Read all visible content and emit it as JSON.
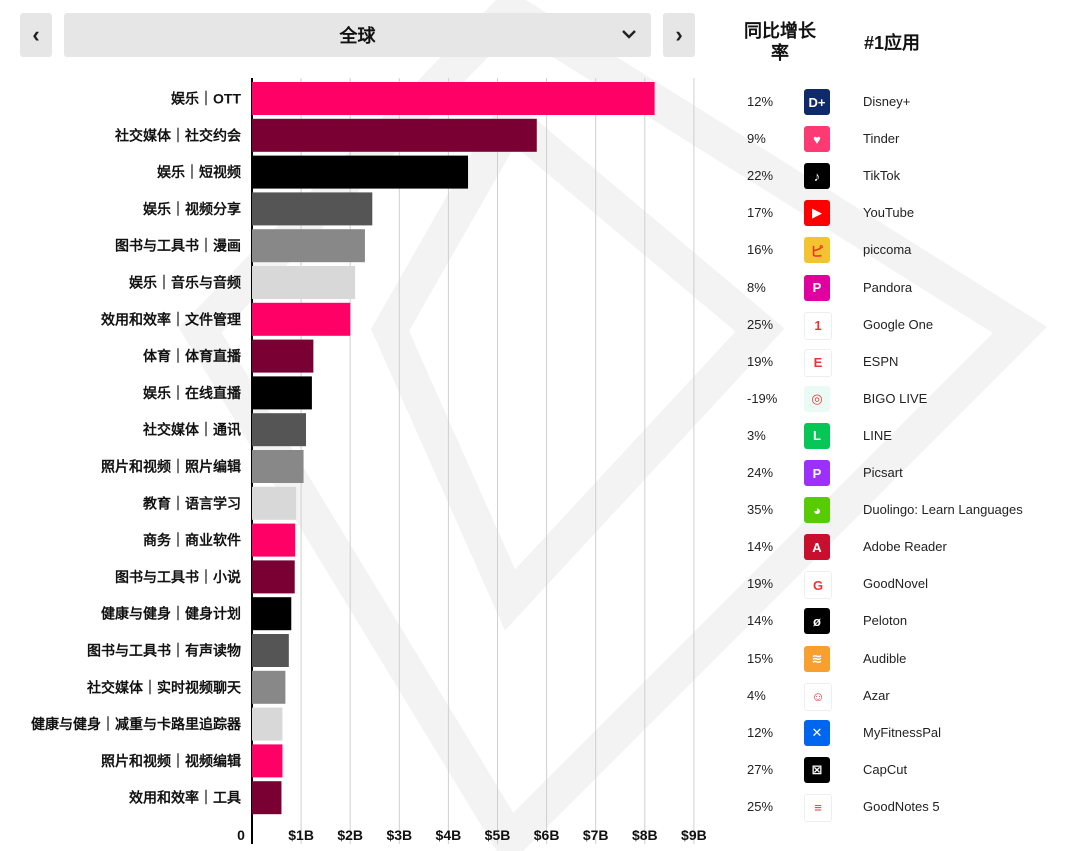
{
  "region": {
    "selected": "全球"
  },
  "columns": {
    "yoy": "同比增长\n率",
    "top_app": "#1应用"
  },
  "chart_data": {
    "type": "bar",
    "orientation": "horizontal",
    "x_tick_labels": [
      "0",
      "$1B",
      "$2B",
      "$3B",
      "$4B",
      "$5B",
      "$6B",
      "$7B",
      "$8B",
      "$9B"
    ],
    "xlim": [
      0,
      9
    ],
    "grid": true,
    "categories": [
      "娱乐｜OTT",
      "社交媒体｜社交约会",
      "娱乐｜短视频",
      "娱乐｜视频分享",
      "图书与工具书｜漫画",
      "娱乐｜音乐与音频",
      "效用和效率｜文件管理",
      "体育｜体育直播",
      "娱乐｜在线直播",
      "社交媒体｜通讯",
      "照片和视频｜照片编辑",
      "教育｜语言学习",
      "商务｜商业软件",
      "图书与工具书｜小说",
      "健康与健身｜健身计划",
      "图书与工具书｜有声读物",
      "社交媒体｜实时视频聊天",
      "健康与健身｜减重与卡路里追踪器",
      "照片和视频｜视频编辑",
      "效用和效率｜工具"
    ],
    "values": [
      8.2,
      5.8,
      4.4,
      2.45,
      2.3,
      2.1,
      2.0,
      1.25,
      1.22,
      1.1,
      1.05,
      0.9,
      0.88,
      0.87,
      0.8,
      0.75,
      0.68,
      0.62,
      0.62,
      0.6
    ],
    "bar_colors": [
      "#ff0066",
      "#7a0033",
      "#000000",
      "#555555",
      "#888888",
      "#d8d8d8"
    ]
  },
  "top_apps": [
    {
      "yoy": "12%",
      "app": "Disney+",
      "icon": "disney-plus-icon",
      "color": "#0f2a6b",
      "glyph": "D+"
    },
    {
      "yoy": "9%",
      "app": "Tinder",
      "icon": "tinder-icon",
      "color": "#fd3a73",
      "glyph": "♥"
    },
    {
      "yoy": "22%",
      "app": "TikTok",
      "icon": "tiktok-icon",
      "color": "#000000",
      "glyph": "♪"
    },
    {
      "yoy": "17%",
      "app": "YouTube",
      "icon": "youtube-icon",
      "color": "#ff0000",
      "glyph": "▶"
    },
    {
      "yoy": "16%",
      "app": "piccoma",
      "icon": "piccoma-icon",
      "color": "#f4c430",
      "glyph": "ピ"
    },
    {
      "yoy": "8%",
      "app": "Pandora",
      "icon": "pandora-icon",
      "color": "#e000a0",
      "glyph": "P"
    },
    {
      "yoy": "25%",
      "app": "Google One",
      "icon": "google-one-icon",
      "color": "#ffffff",
      "glyph": "1"
    },
    {
      "yoy": "19%",
      "app": "ESPN",
      "icon": "espn-icon",
      "color": "#ffffff",
      "glyph": "E"
    },
    {
      "yoy": "-19%",
      "app": "BIGO LIVE",
      "icon": "bigo-live-icon",
      "color": "#eafaf5",
      "glyph": "◎"
    },
    {
      "yoy": "3%",
      "app": "LINE",
      "icon": "line-icon",
      "color": "#06c755",
      "glyph": "L"
    },
    {
      "yoy": "24%",
      "app": "Picsart",
      "icon": "picsart-icon",
      "color": "#9b30ff",
      "glyph": "P"
    },
    {
      "yoy": "35%",
      "app": "Duolingo: Learn Languages",
      "icon": "duolingo-icon",
      "color": "#58cc02",
      "glyph": "◕"
    },
    {
      "yoy": "14%",
      "app": "Adobe Reader",
      "icon": "adobe-reader-icon",
      "color": "#c8102e",
      "glyph": "A"
    },
    {
      "yoy": "19%",
      "app": "GoodNovel",
      "icon": "goodnovel-icon",
      "color": "#ffffff",
      "glyph": "G"
    },
    {
      "yoy": "14%",
      "app": "Peloton",
      "icon": "peloton-icon",
      "color": "#000000",
      "glyph": "ø"
    },
    {
      "yoy": "15%",
      "app": "Audible",
      "icon": "audible-icon",
      "color": "#f7a030",
      "glyph": "≋"
    },
    {
      "yoy": "4%",
      "app": "Azar",
      "icon": "azar-icon",
      "color": "#ffffff",
      "glyph": "☺"
    },
    {
      "yoy": "12%",
      "app": "MyFitnessPal",
      "icon": "myfitnesspal-icon",
      "color": "#0066ee",
      "glyph": "✕"
    },
    {
      "yoy": "27%",
      "app": "CapCut",
      "icon": "capcut-icon",
      "color": "#000000",
      "glyph": "⊠"
    },
    {
      "yoy": "25%",
      "app": "GoodNotes 5",
      "icon": "goodnotes-icon",
      "color": "#ffffff",
      "glyph": "≡"
    }
  ]
}
